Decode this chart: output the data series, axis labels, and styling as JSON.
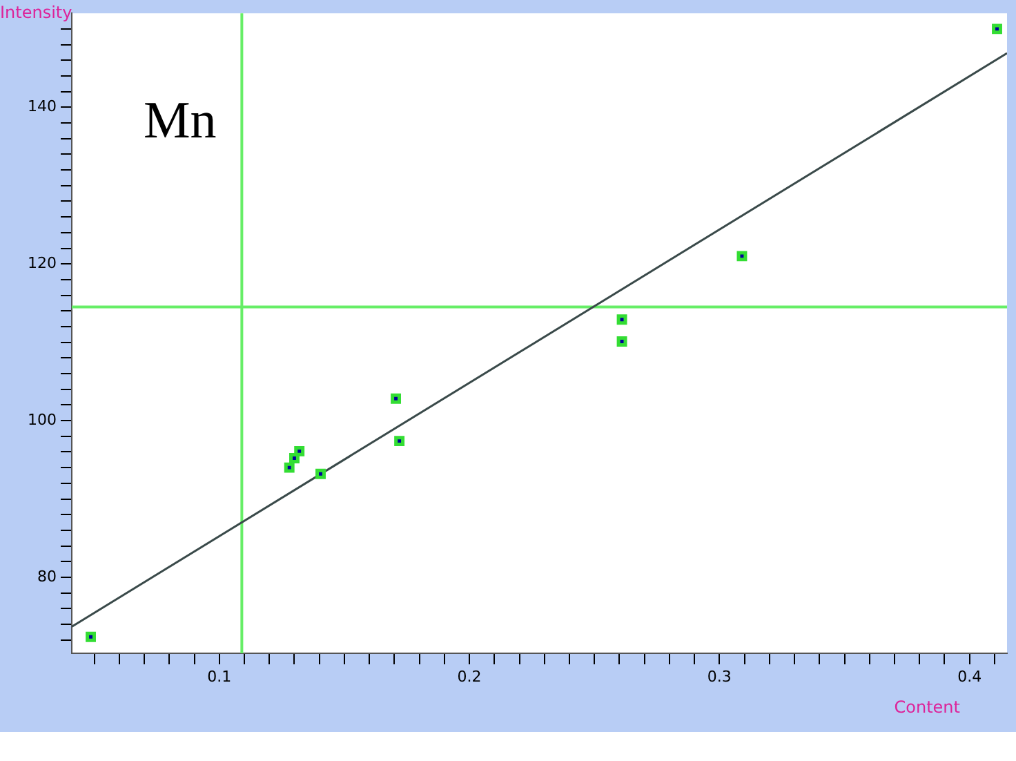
{
  "chart_data": {
    "type": "scatter",
    "title": "Mn",
    "xlabel": "Content",
    "ylabel": "Intensity",
    "xlim": [
      0.041,
      0.415
    ],
    "ylim": [
      70.3,
      152
    ],
    "xticks": [
      {
        "value": 0.05,
        "label": null
      },
      {
        "value": 0.06,
        "label": null
      },
      {
        "value": 0.07,
        "label": null
      },
      {
        "value": 0.08,
        "label": null
      },
      {
        "value": 0.09,
        "label": null
      },
      0.1,
      {
        "value": 0.11,
        "label": null
      },
      {
        "value": 0.12,
        "label": null
      },
      {
        "value": 0.13,
        "label": null
      },
      {
        "value": 0.14,
        "label": null
      },
      {
        "value": 0.15,
        "label": null
      },
      {
        "value": 0.16,
        "label": null
      },
      {
        "value": 0.17,
        "label": null
      },
      {
        "value": 0.18,
        "label": null
      },
      {
        "value": 0.19,
        "label": null
      },
      0.2,
      {
        "value": 0.21,
        "label": null
      },
      {
        "value": 0.22,
        "label": null
      },
      {
        "value": 0.23,
        "label": null
      },
      {
        "value": 0.24,
        "label": null
      },
      {
        "value": 0.25,
        "label": null
      },
      {
        "value": 0.26,
        "label": null
      },
      {
        "value": 0.27,
        "label": null
      },
      {
        "value": 0.28,
        "label": null
      },
      {
        "value": 0.29,
        "label": null
      },
      0.3,
      {
        "value": 0.31,
        "label": null
      },
      {
        "value": 0.32,
        "label": null
      },
      {
        "value": 0.33,
        "label": null
      },
      {
        "value": 0.34,
        "label": null
      },
      {
        "value": 0.35,
        "label": null
      },
      {
        "value": 0.36,
        "label": null
      },
      {
        "value": 0.37,
        "label": null
      },
      {
        "value": 0.38,
        "label": null
      },
      {
        "value": 0.39,
        "label": null
      },
      0.4,
      {
        "value": 0.41,
        "label": null
      }
    ],
    "yticks": [
      {
        "value": 72,
        "label": null
      },
      {
        "value": 74,
        "label": null
      },
      {
        "value": 76,
        "label": null
      },
      {
        "value": 78,
        "label": null
      },
      80,
      {
        "value": 82,
        "label": null
      },
      {
        "value": 84,
        "label": null
      },
      {
        "value": 86,
        "label": null
      },
      {
        "value": 88,
        "label": null
      },
      {
        "value": 90,
        "label": null
      },
      {
        "value": 92,
        "label": null
      },
      {
        "value": 94,
        "label": null
      },
      {
        "value": 96,
        "label": null
      },
      {
        "value": 98,
        "label": null
      },
      100,
      {
        "value": 102,
        "label": null
      },
      {
        "value": 104,
        "label": null
      },
      {
        "value": 106,
        "label": null
      },
      {
        "value": 108,
        "label": null
      },
      {
        "value": 110,
        "label": null
      },
      {
        "value": 112,
        "label": null
      },
      {
        "value": 114,
        "label": null
      },
      {
        "value": 116,
        "label": null
      },
      {
        "value": 118,
        "label": null
      },
      120,
      {
        "value": 122,
        "label": null
      },
      {
        "value": 124,
        "label": null
      },
      {
        "value": 126,
        "label": null
      },
      {
        "value": 128,
        "label": null
      },
      {
        "value": 130,
        "label": null
      },
      {
        "value": 132,
        "label": null
      },
      {
        "value": 134,
        "label": null
      },
      {
        "value": 136,
        "label": null
      },
      {
        "value": 138,
        "label": null
      },
      140,
      {
        "value": 142,
        "label": null
      },
      {
        "value": 144,
        "label": null
      },
      {
        "value": 146,
        "label": null
      },
      {
        "value": 148,
        "label": null
      },
      {
        "value": 150,
        "label": null
      }
    ],
    "marker": "square",
    "grid": false,
    "legend": false,
    "series": [
      {
        "type": "scatter",
        "color": "#33dd33",
        "x": [
          0.0486,
          0.128,
          0.13,
          0.132,
          0.1405,
          0.1706,
          0.172,
          0.261,
          0.261,
          0.309,
          0.411
        ],
        "values": [
          72.4,
          94.0,
          95.2,
          96.1,
          93.2,
          102.8,
          97.4,
          112.9,
          110.1,
          121.0,
          150.0
        ]
      },
      {
        "type": "line",
        "color": "#3a4a4a",
        "x": [
          0.041,
          0.415
        ],
        "values": [
          73.7,
          146.9
        ],
        "marker": "none"
      }
    ],
    "ref_lines": [
      {
        "axis": "x",
        "value": 0.109,
        "color": "#66ee66"
      },
      {
        "axis": "y",
        "value": 114.5,
        "color": "#66ee66"
      }
    ]
  }
}
